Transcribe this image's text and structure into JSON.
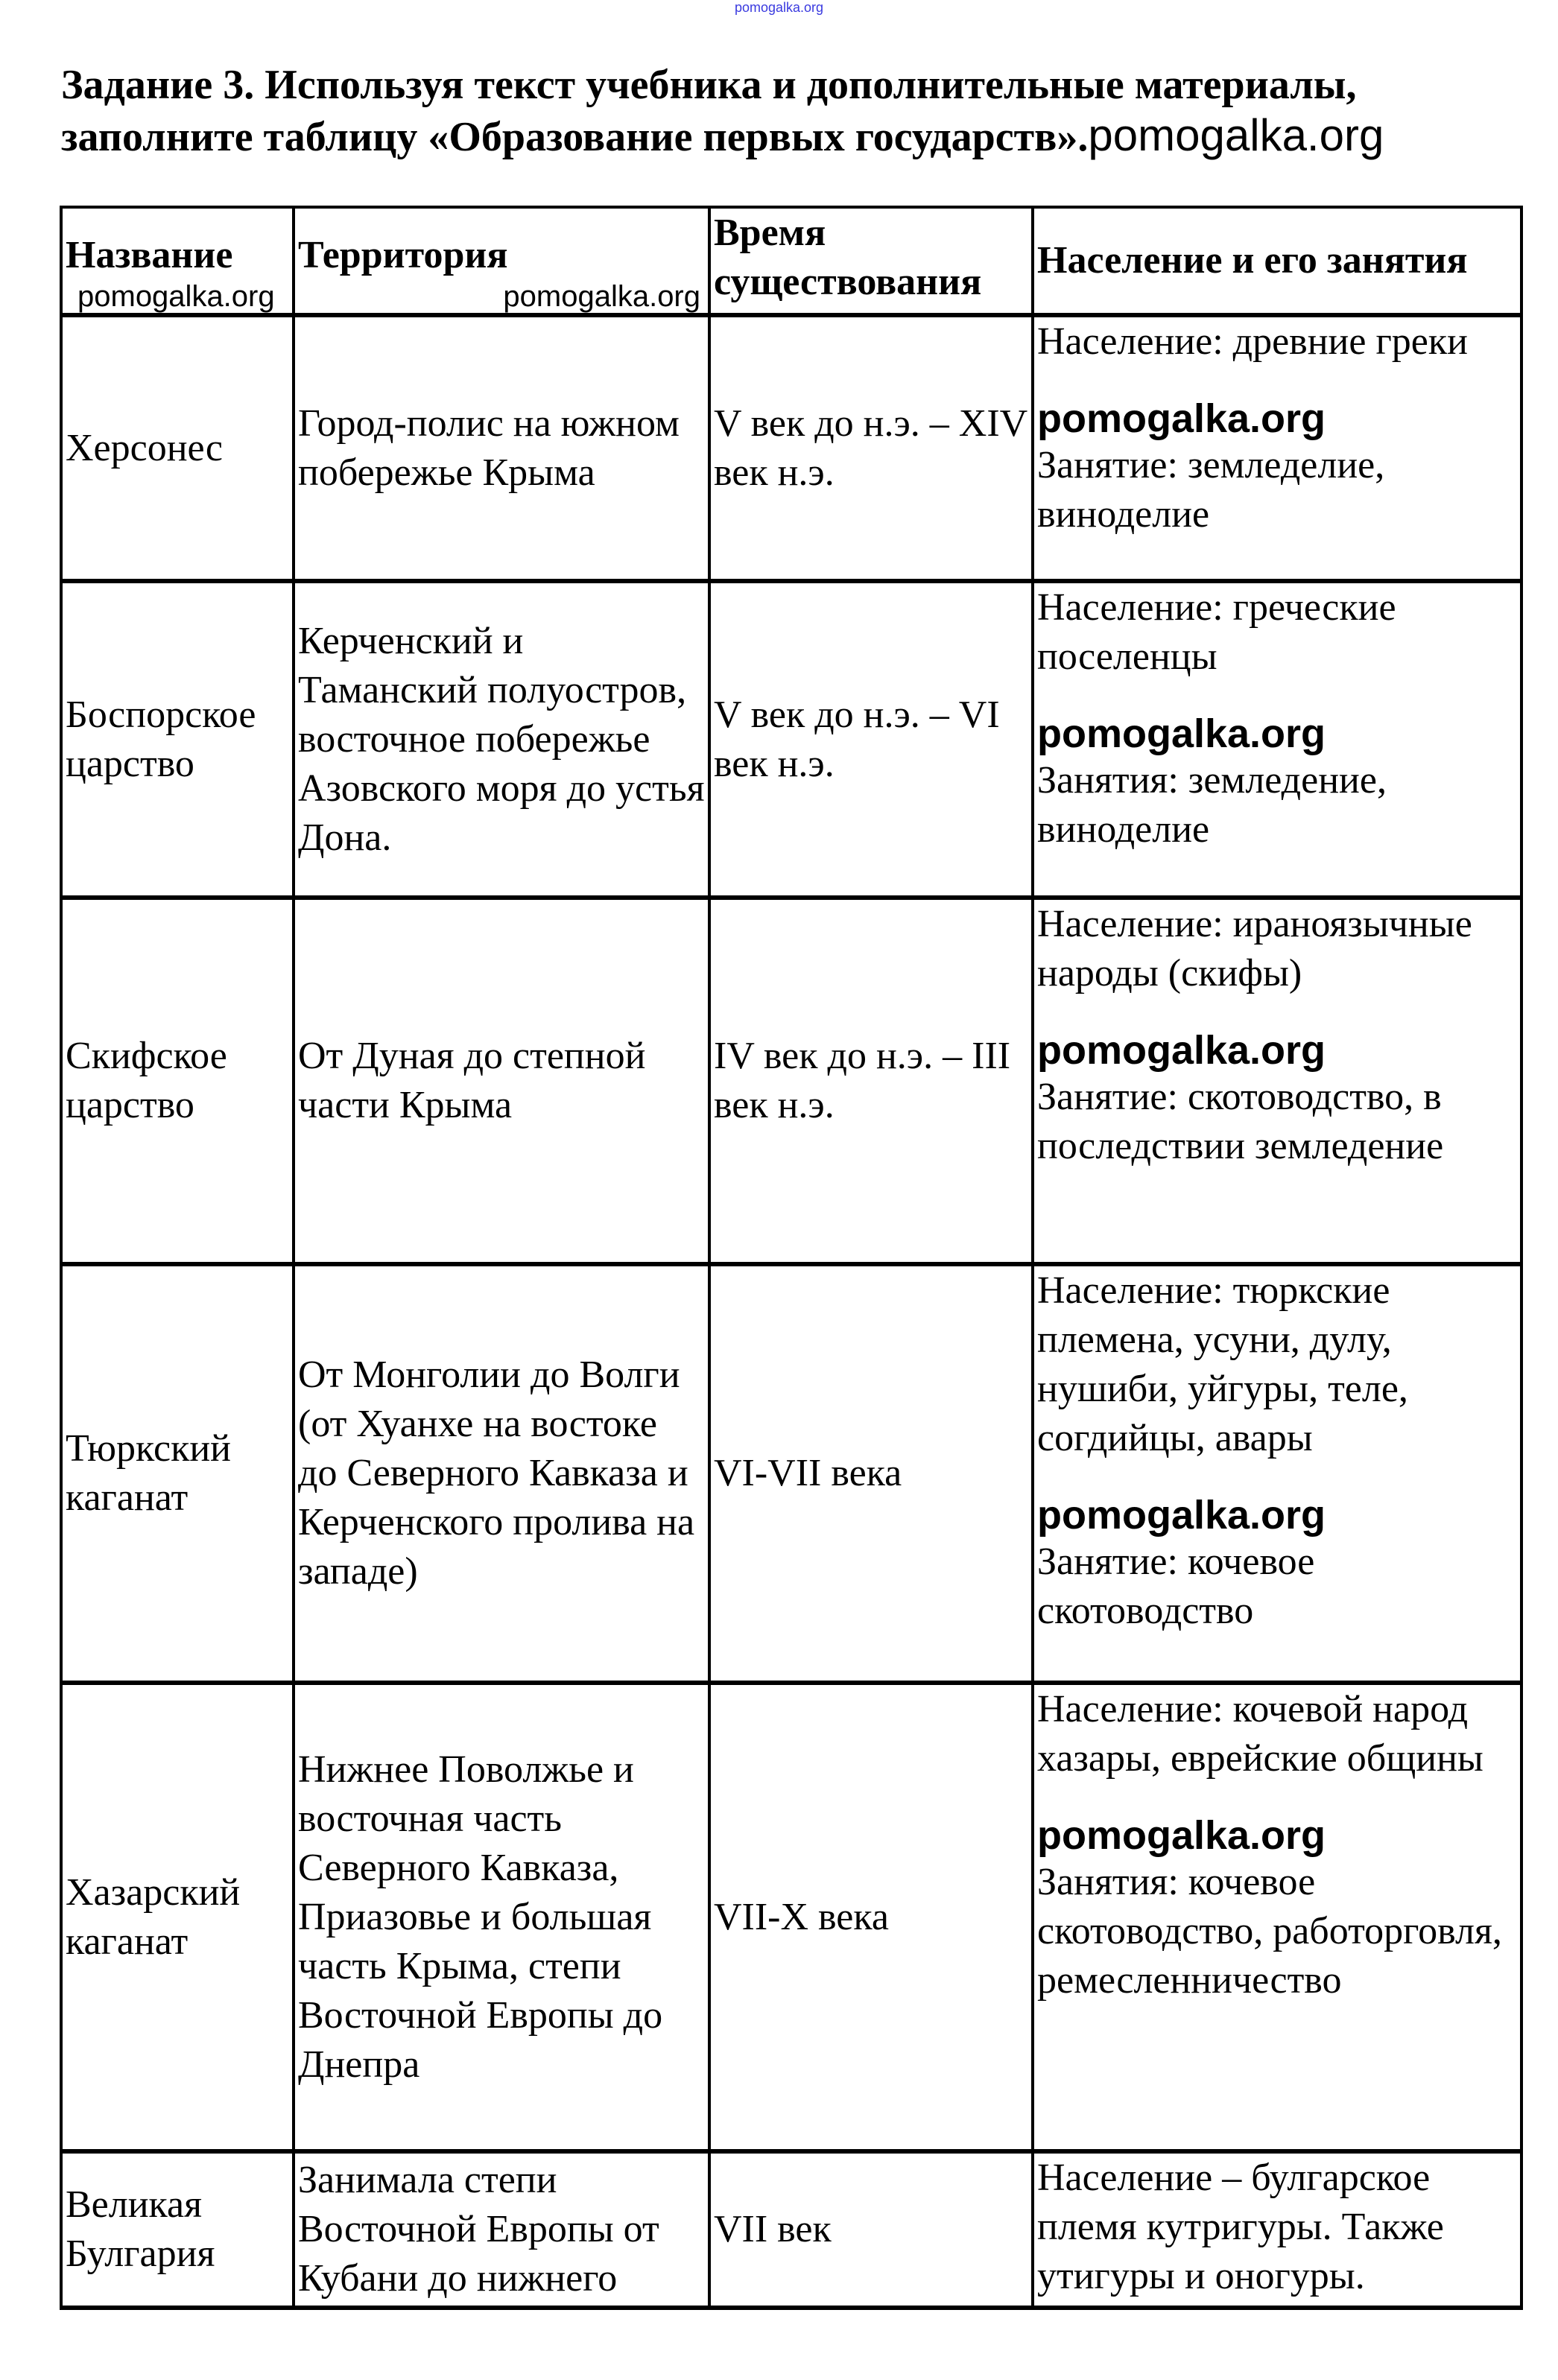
{
  "watermark": "pomogalka.org",
  "title": {
    "line1": "Задание 3. Используя текст учебника и дополнительные материалы,",
    "line2": "заполните таблицу «Образование первых государств».",
    "suffix": "pomogalka.org"
  },
  "table": {
    "headers": [
      "Название",
      "Территория",
      "Время существования",
      "Население и его занятия"
    ],
    "rows": [
      {
        "name": "Херсонес",
        "territory": "Город-полис на южном побережье Крыма",
        "time": "V век до н.э. – XIV век н.э.",
        "population": "Население: древние греки",
        "occupation": "Занятие: земледелие, виноделие"
      },
      {
        "name": "Боспорское царство",
        "territory": "Керченский и Таманский полуостров, восточное побережье Азовского моря до устья Дона.",
        "time": "V век до н.э. – VI век н.э.",
        "population": "Население: греческие поселенцы",
        "occupation": "Занятия: земледение, виноделие"
      },
      {
        "name": "Скифское царство",
        "territory": "От Дуная до степной части Крыма",
        "time": "IV век до н.э. – III век н.э.",
        "population": "Население: ираноязычные народы (скифы)",
        "occupation": "Занятие: скотоводство, в последствии земледение"
      },
      {
        "name": "Тюркский каганат",
        "territory": "От Монголии до Волги (от Хуанхе на востоке до Северного Кавказа и Керченского пролива на западе)",
        "time": "VI-VII века",
        "population": "Население: тюркские племена, усуни, дулу, нушиби, уйгуры, теле, согдийцы, авары",
        "occupation": "Занятие: кочевое скотоводство"
      },
      {
        "name": "Хазарский каганат",
        "territory": "Нижнее Поволжье и восточная часть Северного Кавказа, Приазовье и большая часть Крыма, степи Восточной Европы до Днепра",
        "time": "VII-X века",
        "population": "Население: кочевой народ хазары, еврейские общины",
        "occupation": "Занятия: кочевое скотоводство, работорговля, ремесленничество"
      },
      {
        "name": "Великая Булгария",
        "territory": "Занимала степи Восточной Европы от Кубани до нижнего",
        "time": "VII век",
        "population": "Население – булгарское племя кутригуры. Также утигуры и оногуры.",
        "occupation": ""
      }
    ]
  }
}
